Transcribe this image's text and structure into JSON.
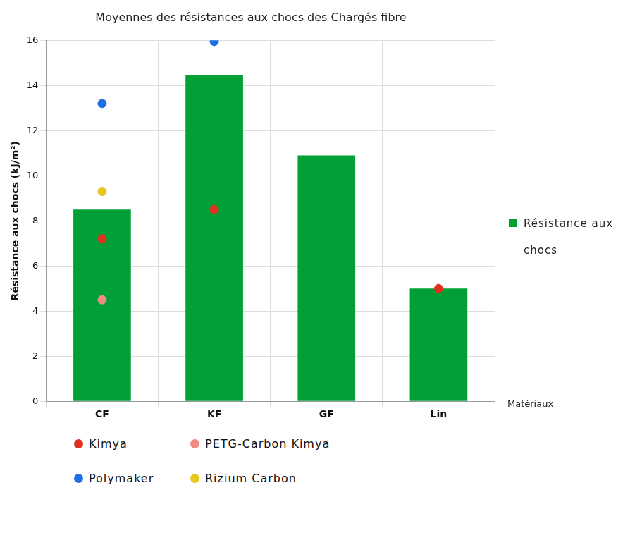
{
  "chart_data": {
    "type": "bar",
    "title": "Moyennes des résistances aux chocs des Chargés fibre",
    "x_label": "Matériaux",
    "y_label": "Résistance aux chocs (kJ/m²)",
    "categories": [
      "CF",
      "KF",
      "GF",
      "Lin"
    ],
    "series": [
      {
        "name": "Résistance aux chocs",
        "type": "bar",
        "color": "#00a036",
        "values": [
          8.5,
          14.45,
          10.9,
          5.0
        ]
      },
      {
        "name": "Kimya",
        "type": "scatter",
        "marker": "circle",
        "color": "#e0301e",
        "values": [
          7.2,
          8.5,
          null,
          5.0
        ]
      },
      {
        "name": "PETG-Carbon Kimya",
        "type": "scatter",
        "marker": "circle",
        "color": "#f28b82",
        "values": [
          4.5,
          null,
          null,
          null
        ]
      },
      {
        "name": "Polymaker",
        "type": "scatter",
        "marker": "circle",
        "color": "#1e6fe6",
        "values": [
          13.2,
          15.95,
          null,
          null
        ]
      },
      {
        "name": "Rizium Carbon",
        "type": "scatter",
        "marker": "circle",
        "color": "#e6c81e",
        "values": [
          9.3,
          null,
          null,
          null
        ]
      }
    ],
    "ylim": [
      0,
      16
    ],
    "yticks": [
      0,
      2,
      4,
      6,
      8,
      10,
      12,
      14,
      16
    ],
    "grid": true
  }
}
